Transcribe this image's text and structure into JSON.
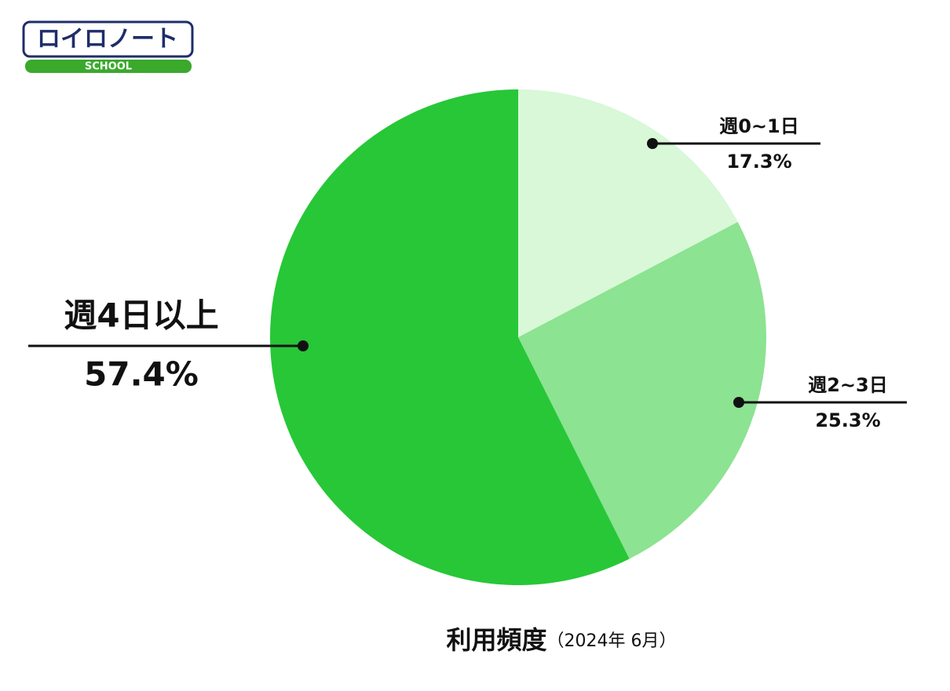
{
  "logo": {
    "title": "ロイロノート",
    "subtitle": "SCHOOL"
  },
  "chart_data": {
    "type": "pie",
    "title": "利用頻度",
    "subtitle": "（2024年 6月）",
    "categories": [
      "週0~1日",
      "週2~3日",
      "週4日以上"
    ],
    "values": [
      17.3,
      25.3,
      57.4
    ],
    "value_labels": [
      "17.3%",
      "25.3%",
      "57.4%"
    ],
    "colors": [
      "#d8f8d8",
      "#8ce391",
      "#27c737"
    ]
  }
}
